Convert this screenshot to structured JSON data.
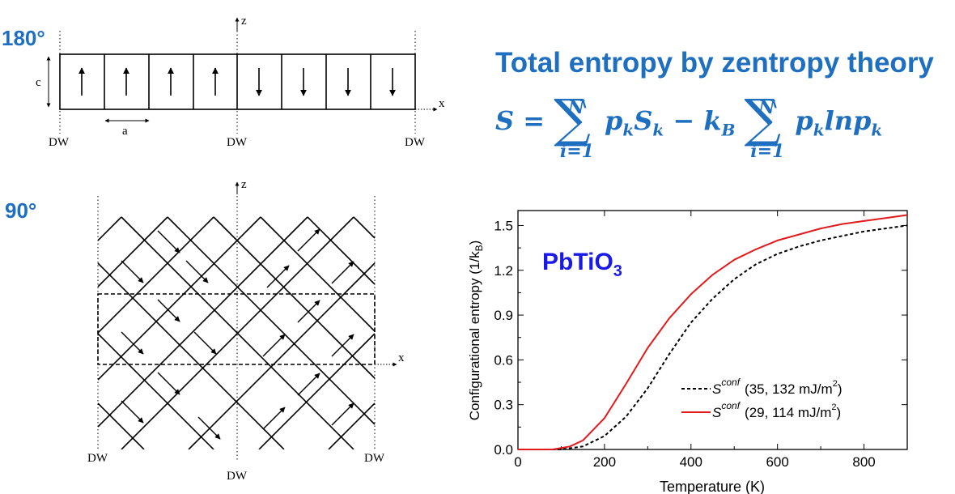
{
  "labels": {
    "panel_180": "180°",
    "panel_90": "90°",
    "domain_wall": "DW",
    "axis_z": "z",
    "axis_x": "x",
    "lattice_c": "c",
    "lattice_a": "a"
  },
  "heading": "Total entropy by zentropy theory",
  "formula": {
    "lhs": "S =",
    "upper": "N",
    "lower": "i=1",
    "term1": "p",
    "term1_sub": "k",
    "term1b": "S",
    "term1b_sub": "k",
    "minus": "−",
    "kb": "k",
    "kb_sub": "B",
    "term2": "p",
    "term2_sub": "k",
    "term2_ln": "lnp",
    "term2_ln_sub": "k"
  },
  "colors": {
    "accent": "#1f6fc1",
    "plot_blue": "#1a1ae6",
    "red": "#e31a1c",
    "black": "#000000"
  },
  "chart_data": {
    "type": "line",
    "annotation": "PbTiO",
    "annotation_sub": "3",
    "xlabel": "Temperature (K)",
    "ylabel": "Configurational entropy (1/k",
    "ylabel_sub": "B",
    "ylabel_end": ")",
    "xlim": [
      0,
      900
    ],
    "ylim": [
      0,
      1.6
    ],
    "xticks": [
      0,
      200,
      400,
      600,
      800
    ],
    "xtick_labels": [
      "0",
      "200",
      "400",
      "600",
      "800"
    ],
    "yticks": [
      0,
      0.3,
      0.6,
      0.9,
      1.2,
      1.5
    ],
    "ytick_labels": [
      "0.0",
      "0.3",
      "0.6",
      "0.9",
      "1.2",
      "1.5"
    ],
    "series": [
      {
        "name": "S",
        "sup": "conf",
        "params": "(35, 132 mJ/m",
        "params_sup": "2",
        "params_end": ")",
        "style": "dashed",
        "color": "#000000",
        "x": [
          0,
          100,
          150,
          200,
          250,
          300,
          350,
          400,
          450,
          500,
          550,
          600,
          650,
          700,
          750,
          800,
          850,
          900
        ],
        "y": [
          0,
          0.0,
          0.02,
          0.09,
          0.22,
          0.41,
          0.64,
          0.85,
          1.01,
          1.14,
          1.24,
          1.31,
          1.36,
          1.4,
          1.43,
          1.46,
          1.48,
          1.5
        ]
      },
      {
        "name": "S",
        "sup": "conf",
        "params": "(29, 114 mJ/m",
        "params_sup": "2",
        "params_end": ")",
        "style": "solid",
        "color": "#e31a1c",
        "x": [
          0,
          80,
          120,
          150,
          200,
          250,
          300,
          350,
          400,
          450,
          500,
          550,
          600,
          650,
          700,
          750,
          800,
          850,
          900
        ],
        "y": [
          0,
          0.0,
          0.02,
          0.06,
          0.21,
          0.44,
          0.68,
          0.88,
          1.04,
          1.17,
          1.27,
          1.34,
          1.4,
          1.44,
          1.48,
          1.51,
          1.53,
          1.55,
          1.57
        ]
      }
    ]
  }
}
